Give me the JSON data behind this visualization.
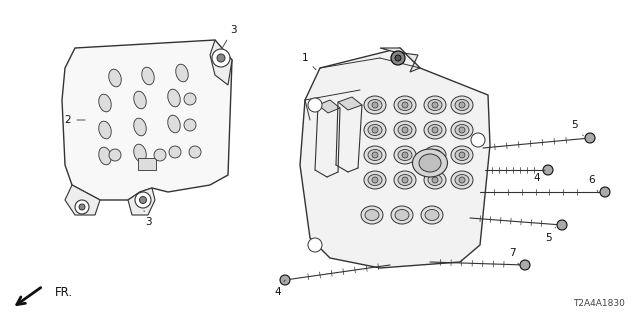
{
  "bg_color": "#ffffff",
  "lc": "#333333",
  "dc": "#111111",
  "diagram_id": "T2A4A1830",
  "fig_w": 6.4,
  "fig_h": 3.2,
  "dpi": 100
}
